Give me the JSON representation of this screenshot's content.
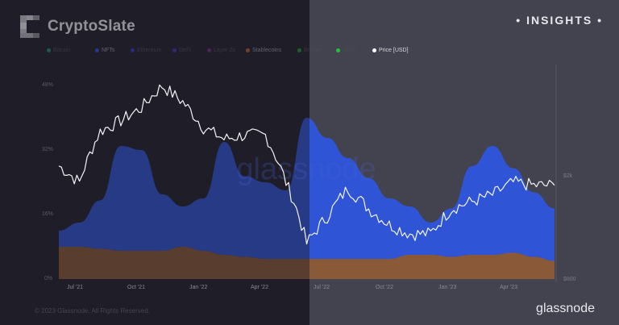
{
  "brand": {
    "name": "CryptoSlate",
    "tag": "• INSIGHTS •"
  },
  "footer": {
    "copyright": "© 2023 Glassnode. All Rights Reserved.",
    "provider": "glassnode"
  },
  "watermark": "glassnode",
  "legend": [
    {
      "label": "Bitcoin",
      "color": "#1a8f6e",
      "visible": false
    },
    {
      "label": "NFTs",
      "color": "#2a50e0",
      "visible": true
    },
    {
      "label": "Ethereum",
      "color": "#2e3fc0",
      "visible": false
    },
    {
      "label": "DeFi",
      "color": "#4530b0",
      "visible": false
    },
    {
      "label": "Layer 2s",
      "color": "#7a2a80",
      "visible": false
    },
    {
      "label": "Stablecoins",
      "color": "#c0602a",
      "visible": true
    },
    {
      "label": "Bridge",
      "color": "#1f9a30",
      "visible": false
    },
    {
      "label": "Other",
      "color": "#22c040",
      "visible": false
    },
    {
      "label": "Price [USD]",
      "color": "#ffffff",
      "visible": true
    }
  ],
  "chart_data": {
    "type": "area",
    "title": "",
    "xlabel": "",
    "ylabel": "",
    "ylim": [
      0,
      48
    ],
    "y_ticks": [
      "0%",
      "16%",
      "32%",
      "48%"
    ],
    "y2_ticks": [
      "$800",
      "$2k"
    ],
    "x_ticks": [
      "Jul '21",
      "Oct '21",
      "Jan '22",
      "Apr '22",
      "Jul '22",
      "Oct '22",
      "Jan '23",
      "Apr '23"
    ],
    "x": [
      "Jun '21",
      "Jul '21",
      "Aug '21",
      "Sep '21",
      "Oct '21",
      "Nov '21",
      "Dec '21",
      "Jan '22",
      "Feb '22",
      "Mar '22",
      "Apr '22",
      "May '22",
      "Jun '22",
      "Jul '22",
      "Aug '22",
      "Sep '22",
      "Oct '22",
      "Nov '22",
      "Dec '22",
      "Jan '23",
      "Feb '23",
      "Mar '23",
      "Apr '23",
      "May '23",
      "Jun '23"
    ],
    "series": [
      {
        "name": "Stablecoins",
        "color": "#8a5a38",
        "stack": true,
        "values": [
          8,
          8,
          7.5,
          7,
          7,
          7,
          8,
          7,
          6,
          5.5,
          5,
          5,
          5,
          5,
          5,
          5,
          5,
          6,
          6,
          5.5,
          6,
          6,
          6.5,
          5.5,
          4.5
        ]
      },
      {
        "name": "NFTs",
        "color": "#2f55d6",
        "stack": true,
        "values": [
          4,
          6,
          12,
          26,
          25,
          14,
          10,
          13,
          28,
          20,
          19,
          17,
          35,
          30,
          25,
          20,
          15,
          12,
          8,
          12,
          22,
          27,
          21,
          16,
          13
        ]
      },
      {
        "name": "Price [USD]",
        "color": "#ffffff",
        "axis": "right",
        "values": [
          2200,
          1900,
          3000,
          3300,
          3700,
          4500,
          3900,
          3100,
          2800,
          2900,
          2900,
          1900,
          1100,
          1400,
          1800,
          1500,
          1300,
          1200,
          1200,
          1500,
          1600,
          1700,
          1900,
          1850,
          1850
        ]
      }
    ],
    "grid": false,
    "legend_position": "top"
  }
}
